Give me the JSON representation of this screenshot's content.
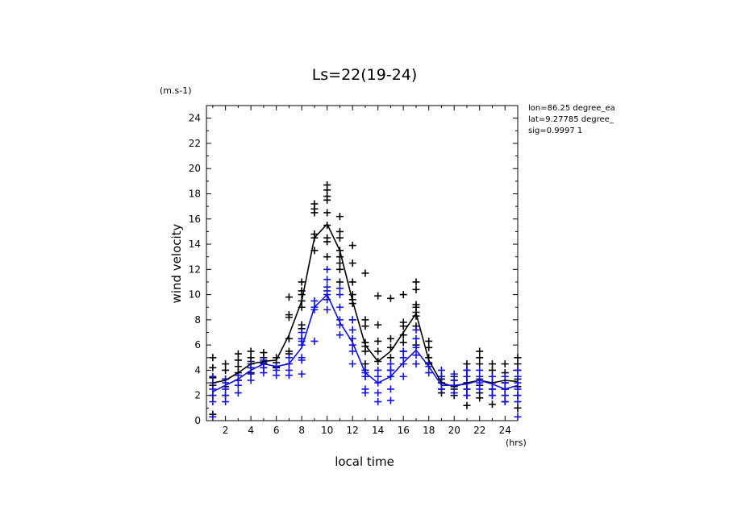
{
  "chart_data": {
    "type": "scatter",
    "title": "Ls=22(19-24)",
    "xlabel": "local time",
    "ylabel": "wind velocity",
    "x_unit": "(hrs)",
    "y_unit": "(m.s-1)",
    "xlim": [
      0.5,
      25
    ],
    "ylim": [
      0,
      25
    ],
    "x_ticks": [
      2,
      4,
      6,
      8,
      10,
      12,
      14,
      16,
      18,
      20,
      22,
      24
    ],
    "y_ticks": [
      0,
      2,
      4,
      6,
      8,
      10,
      12,
      14,
      16,
      18,
      20,
      22,
      24
    ],
    "annotations": [
      "lon=86.25 degree_ea",
      "lat=9.27785 degree_",
      "sig=0.9997 1"
    ],
    "x": [
      1,
      2,
      3,
      4,
      5,
      6,
      7,
      8,
      9,
      10,
      11,
      12,
      13,
      14,
      15,
      16,
      17,
      18,
      19,
      20,
      21,
      22,
      23,
      24,
      25
    ],
    "series": [
      {
        "color": "#000000",
        "mean": [
          3.0,
          3.2,
          3.8,
          4.5,
          4.7,
          4.8,
          6.8,
          9.5,
          14.5,
          15.6,
          13.5,
          9.5,
          6.0,
          4.7,
          5.5,
          7.0,
          8.5,
          4.8,
          3.0,
          2.7,
          3.0,
          3.2,
          3.0,
          3.2,
          3.1
        ],
        "points": [
          [
            1,
            0.5
          ],
          [
            1,
            2.0
          ],
          [
            1,
            2.8
          ],
          [
            1,
            3.4
          ],
          [
            1,
            4.2
          ],
          [
            1,
            5.0
          ],
          [
            2,
            2.0
          ],
          [
            2,
            2.7
          ],
          [
            2,
            3.3
          ],
          [
            2,
            4.0
          ],
          [
            2,
            4.5
          ],
          [
            3,
            3.2
          ],
          [
            3,
            3.8
          ],
          [
            3,
            4.3
          ],
          [
            3,
            4.8
          ],
          [
            3,
            5.3
          ],
          [
            4,
            3.8
          ],
          [
            4,
            4.2
          ],
          [
            4,
            4.7
          ],
          [
            4,
            5.0
          ],
          [
            4,
            5.5
          ],
          [
            5,
            4.2
          ],
          [
            5,
            4.6
          ],
          [
            5,
            5.0
          ],
          [
            5,
            5.4
          ],
          [
            6,
            4.2
          ],
          [
            6,
            4.6
          ],
          [
            6,
            5.0
          ],
          [
            7,
            5.3
          ],
          [
            7,
            5.5
          ],
          [
            7,
            6.5
          ],
          [
            7,
            8.2
          ],
          [
            7,
            8.4
          ],
          [
            7,
            9.8
          ],
          [
            8,
            6.5
          ],
          [
            8,
            7.3
          ],
          [
            8,
            7.6
          ],
          [
            8,
            9.0
          ],
          [
            8,
            9.5
          ],
          [
            8,
            10.0
          ],
          [
            8,
            10.3
          ],
          [
            8,
            11.0
          ],
          [
            9,
            13.5
          ],
          [
            9,
            14.5
          ],
          [
            9,
            14.8
          ],
          [
            9,
            16.5
          ],
          [
            9,
            16.8
          ],
          [
            9,
            17.2
          ],
          [
            10,
            13.0
          ],
          [
            10,
            14.2
          ],
          [
            10,
            14.5
          ],
          [
            10,
            15.5
          ],
          [
            10,
            16.5
          ],
          [
            10,
            17.5
          ],
          [
            10,
            17.8
          ],
          [
            10,
            18.3
          ],
          [
            10,
            18.7
          ],
          [
            11,
            11.0
          ],
          [
            11,
            12.0
          ],
          [
            11,
            12.5
          ],
          [
            11,
            13.0
          ],
          [
            11,
            13.5
          ],
          [
            11,
            14.5
          ],
          [
            11,
            15.0
          ],
          [
            11,
            16.2
          ],
          [
            12,
            8.0
          ],
          [
            12,
            9.3
          ],
          [
            12,
            9.6
          ],
          [
            12,
            10.0
          ],
          [
            12,
            11.0
          ],
          [
            12,
            12.5
          ],
          [
            12,
            13.9
          ],
          [
            13,
            3.5
          ],
          [
            13,
            4.0
          ],
          [
            13,
            4.5
          ],
          [
            13,
            5.5
          ],
          [
            13,
            5.9
          ],
          [
            13,
            6.2
          ],
          [
            13,
            7.5
          ],
          [
            13,
            8.0
          ],
          [
            13,
            11.7
          ],
          [
            14,
            4.7
          ],
          [
            14,
            5.5
          ],
          [
            14,
            6.3
          ],
          [
            14,
            7.6
          ],
          [
            14,
            9.9
          ],
          [
            15,
            3.5
          ],
          [
            15,
            4.0
          ],
          [
            15,
            5.0
          ],
          [
            15,
            5.8
          ],
          [
            15,
            6.5
          ],
          [
            15,
            9.7
          ],
          [
            16,
            5.5
          ],
          [
            16,
            6.2
          ],
          [
            16,
            6.8
          ],
          [
            16,
            7.5
          ],
          [
            16,
            7.8
          ],
          [
            16,
            10.0
          ],
          [
            17,
            6.0
          ],
          [
            17,
            7.5
          ],
          [
            17,
            8.3
          ],
          [
            17,
            8.6
          ],
          [
            17,
            9.0
          ],
          [
            17,
            9.2
          ],
          [
            17,
            10.4
          ],
          [
            17,
            11.0
          ],
          [
            18,
            4.5
          ],
          [
            18,
            5.0
          ],
          [
            18,
            5.8
          ],
          [
            18,
            6.3
          ],
          [
            19,
            2.2
          ],
          [
            19,
            2.5
          ],
          [
            19,
            3.0
          ],
          [
            19,
            3.3
          ],
          [
            19,
            3.5
          ],
          [
            20,
            2.0
          ],
          [
            20,
            2.5
          ],
          [
            20,
            2.8
          ],
          [
            20,
            3.2
          ],
          [
            20,
            3.5
          ],
          [
            21,
            1.2
          ],
          [
            21,
            2.0
          ],
          [
            21,
            2.5
          ],
          [
            21,
            3.0
          ],
          [
            21,
            3.5
          ],
          [
            21,
            4.0
          ],
          [
            21,
            4.5
          ],
          [
            22,
            1.8
          ],
          [
            22,
            2.2
          ],
          [
            22,
            2.8
          ],
          [
            22,
            3.3
          ],
          [
            22,
            4.5
          ],
          [
            22,
            5.0
          ],
          [
            22,
            5.5
          ],
          [
            23,
            1.3
          ],
          [
            23,
            2.0
          ],
          [
            23,
            2.5
          ],
          [
            23,
            3.0
          ],
          [
            23,
            3.5
          ],
          [
            23,
            4.0
          ],
          [
            23,
            4.5
          ],
          [
            24,
            1.5
          ],
          [
            24,
            2.0
          ],
          [
            24,
            2.5
          ],
          [
            24,
            3.0
          ],
          [
            24,
            3.8
          ],
          [
            24,
            4.5
          ],
          [
            25,
            1.0
          ],
          [
            25,
            2.0
          ],
          [
            25,
            2.7
          ],
          [
            25,
            3.3
          ],
          [
            25,
            4.0
          ],
          [
            25,
            4.5
          ],
          [
            25,
            5.0
          ]
        ]
      },
      {
        "color": "#1010e0",
        "mean": [
          2.3,
          2.8,
          3.3,
          4.0,
          4.5,
          4.3,
          4.5,
          5.8,
          9.0,
          10.0,
          7.8,
          6.2,
          3.8,
          3.0,
          3.5,
          4.6,
          5.6,
          4.3,
          2.8,
          2.8,
          2.9,
          3.2,
          2.9,
          2.5,
          2.8
        ],
        "points": [
          [
            1,
            0.3
          ],
          [
            1,
            1.5
          ],
          [
            1,
            2.0
          ],
          [
            1,
            2.5
          ],
          [
            1,
            3.0
          ],
          [
            1,
            3.5
          ],
          [
            2,
            1.5
          ],
          [
            2,
            2.0
          ],
          [
            2,
            2.5
          ],
          [
            2,
            3.0
          ],
          [
            2,
            3.3
          ],
          [
            3,
            2.2
          ],
          [
            3,
            2.8
          ],
          [
            3,
            3.2
          ],
          [
            3,
            3.6
          ],
          [
            4,
            3.2
          ],
          [
            4,
            3.7
          ],
          [
            4,
            4.2
          ],
          [
            4,
            4.5
          ],
          [
            5,
            3.8
          ],
          [
            5,
            4.2
          ],
          [
            5,
            4.5
          ],
          [
            5,
            4.8
          ],
          [
            6,
            3.6
          ],
          [
            6,
            4.0
          ],
          [
            6,
            4.3
          ],
          [
            7,
            3.6
          ],
          [
            7,
            4.0
          ],
          [
            7,
            4.5
          ],
          [
            7,
            5.0
          ],
          [
            8,
            3.7
          ],
          [
            8,
            4.8
          ],
          [
            8,
            5.0
          ],
          [
            8,
            6.0
          ],
          [
            8,
            6.3
          ],
          [
            8,
            6.5
          ],
          [
            8,
            7.0
          ],
          [
            9,
            6.3
          ],
          [
            9,
            8.8
          ],
          [
            9,
            9.0
          ],
          [
            9,
            9.5
          ],
          [
            10,
            8.8
          ],
          [
            10,
            9.6
          ],
          [
            10,
            10.0
          ],
          [
            10,
            10.3
          ],
          [
            10,
            10.6
          ],
          [
            10,
            11.2
          ],
          [
            10,
            12.0
          ],
          [
            11,
            6.8
          ],
          [
            11,
            7.6
          ],
          [
            11,
            8.0
          ],
          [
            11,
            9.0
          ],
          [
            11,
            10.0
          ],
          [
            11,
            10.5
          ],
          [
            12,
            4.5
          ],
          [
            12,
            5.5
          ],
          [
            12,
            6.0
          ],
          [
            12,
            6.5
          ],
          [
            12,
            7.2
          ],
          [
            12,
            8.0
          ],
          [
            13,
            2.2
          ],
          [
            13,
            2.5
          ],
          [
            13,
            3.5
          ],
          [
            13,
            3.8
          ],
          [
            13,
            4.0
          ],
          [
            14,
            1.5
          ],
          [
            14,
            2.2
          ],
          [
            14,
            3.0
          ],
          [
            14,
            3.5
          ],
          [
            14,
            4.0
          ],
          [
            15,
            1.6
          ],
          [
            15,
            2.5
          ],
          [
            15,
            3.5
          ],
          [
            15,
            4.0
          ],
          [
            15,
            4.5
          ],
          [
            16,
            3.5
          ],
          [
            16,
            4.5
          ],
          [
            16,
            5.0
          ],
          [
            16,
            5.5
          ],
          [
            17,
            4.5
          ],
          [
            17,
            5.2
          ],
          [
            17,
            5.8
          ],
          [
            17,
            6.5
          ],
          [
            17,
            7.2
          ],
          [
            18,
            3.8
          ],
          [
            18,
            4.3
          ],
          [
            18,
            4.6
          ],
          [
            19,
            2.5
          ],
          [
            19,
            3.0
          ],
          [
            19,
            3.5
          ],
          [
            19,
            4.0
          ],
          [
            20,
            2.2
          ],
          [
            20,
            2.7
          ],
          [
            20,
            3.2
          ],
          [
            20,
            3.7
          ],
          [
            21,
            2.0
          ],
          [
            21,
            2.5
          ],
          [
            21,
            3.0
          ],
          [
            21,
            3.5
          ],
          [
            21,
            4.0
          ],
          [
            22,
            2.5
          ],
          [
            22,
            3.0
          ],
          [
            22,
            3.5
          ],
          [
            22,
            4.0
          ],
          [
            23,
            2.0
          ],
          [
            23,
            2.5
          ],
          [
            23,
            3.0
          ],
          [
            23,
            3.5
          ],
          [
            24,
            1.5
          ],
          [
            24,
            2.0
          ],
          [
            24,
            2.5
          ],
          [
            24,
            3.0
          ],
          [
            24,
            3.5
          ],
          [
            25,
            0.3
          ],
          [
            25,
            1.5
          ],
          [
            25,
            2.0
          ],
          [
            25,
            2.5
          ],
          [
            25,
            3.0
          ],
          [
            25,
            3.5
          ],
          [
            25,
            4.0
          ]
        ]
      }
    ]
  }
}
